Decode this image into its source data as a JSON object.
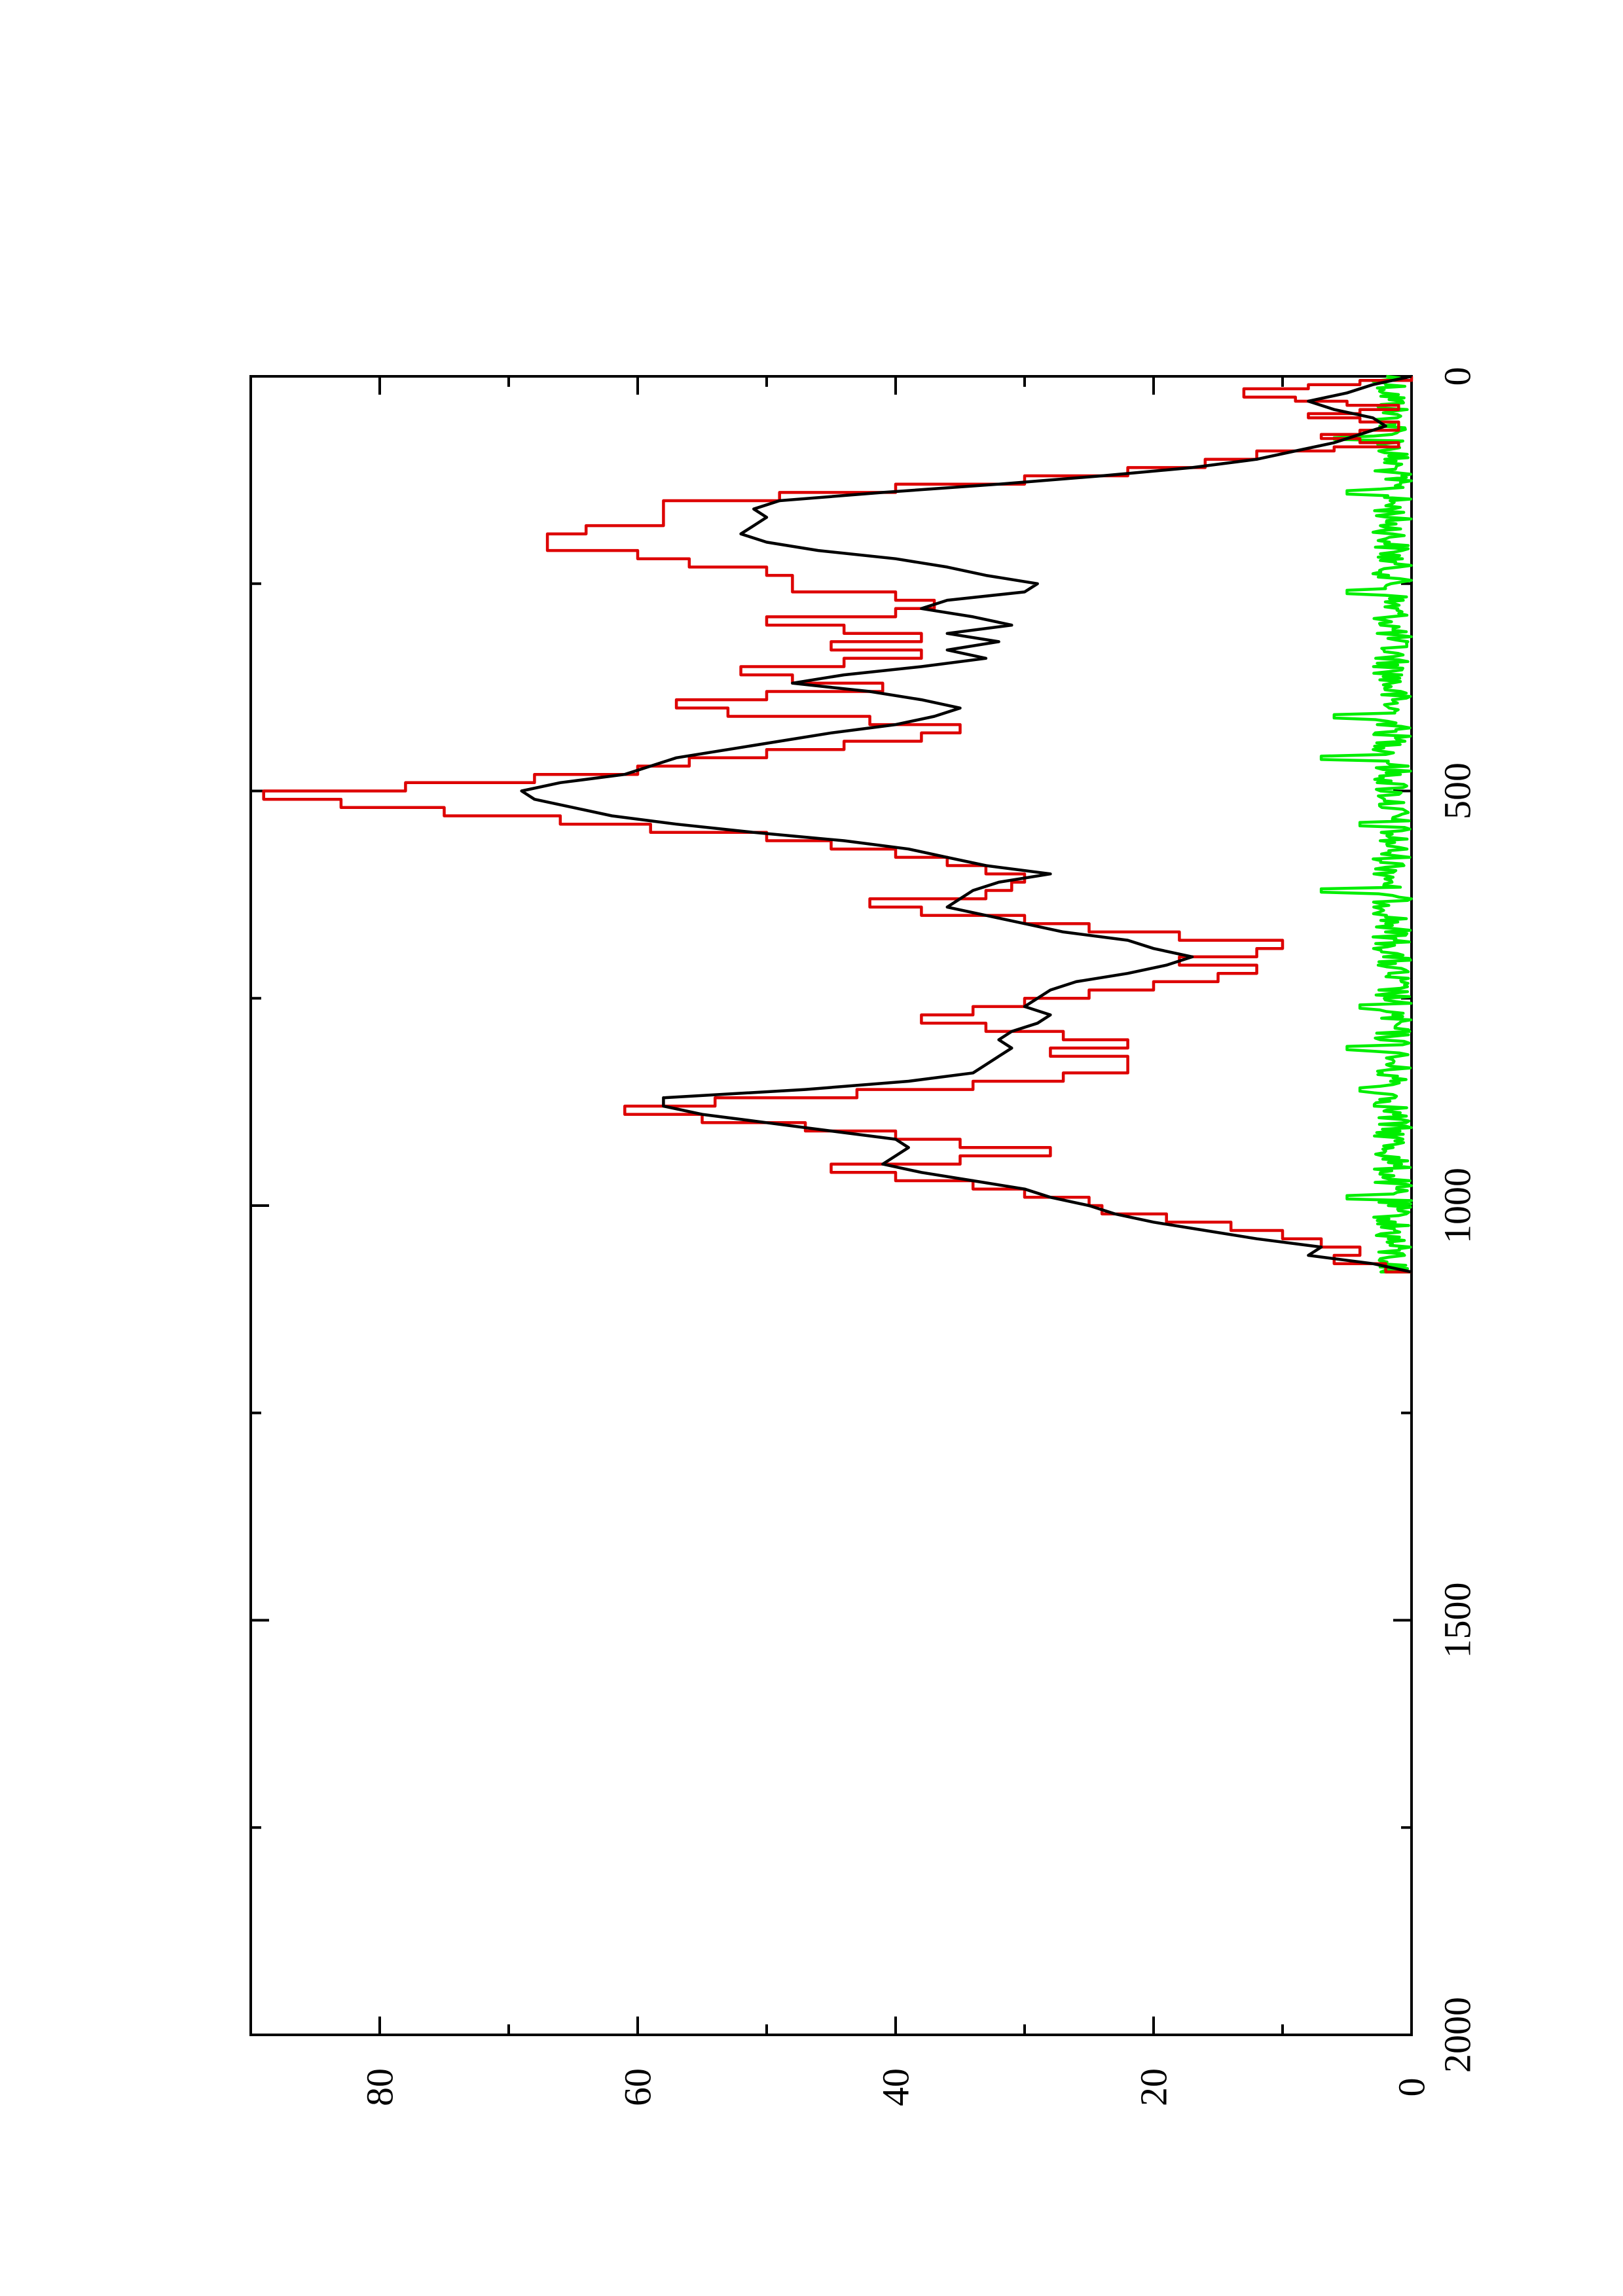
{
  "chart_data": {
    "type": "line",
    "orientation": "rotated-90-clockwise",
    "title": "",
    "xlabel": "",
    "ylabel": "",
    "xlim": [
      0,
      2000
    ],
    "ylim": [
      0,
      90
    ],
    "x_ticks": [
      0,
      500,
      1000,
      1500,
      2000
    ],
    "x_minor_ticks": [
      250,
      750,
      1250,
      1750
    ],
    "y_ticks": [
      0,
      20,
      40,
      60,
      80
    ],
    "y_minor_ticks": [
      10,
      30,
      50,
      70
    ],
    "grid": false,
    "legend": "none",
    "series": [
      {
        "color": "#dd0000",
        "step": true,
        "x": [
          0,
          5,
          10,
          15,
          20,
          25,
          30,
          35,
          40,
          45,
          50,
          55,
          60,
          65,
          70,
          75,
          80,
          85,
          90,
          100,
          110,
          120,
          130,
          140,
          150,
          160,
          170,
          180,
          190,
          200,
          210,
          220,
          230,
          240,
          250,
          260,
          270,
          280,
          290,
          300,
          310,
          320,
          330,
          340,
          350,
          360,
          370,
          380,
          390,
          400,
          410,
          420,
          430,
          440,
          450,
          460,
          470,
          480,
          490,
          500,
          510,
          520,
          530,
          540,
          550,
          560,
          570,
          580,
          590,
          600,
          610,
          620,
          630,
          640,
          650,
          660,
          670,
          680,
          690,
          700,
          710,
          720,
          730,
          740,
          750,
          760,
          770,
          780,
          790,
          800,
          810,
          820,
          830,
          840,
          850,
          860,
          870,
          880,
          890,
          900,
          910,
          920,
          930,
          940,
          950,
          960,
          970,
          980,
          990,
          1000,
          1010,
          1020,
          1030,
          1040,
          1050,
          1060,
          1070,
          1080
        ],
        "y": [
          0,
          4,
          8,
          13,
          13,
          9,
          5,
          1,
          4,
          8,
          4,
          1,
          1,
          4,
          7,
          4,
          1,
          6,
          12,
          16,
          22,
          30,
          40,
          49,
          58,
          58,
          58,
          64,
          67,
          67,
          60,
          56,
          50,
          48,
          48,
          40,
          37,
          40,
          50,
          44,
          38,
          45,
          38,
          44,
          52,
          48,
          41,
          50,
          57,
          53,
          42,
          35,
          38,
          44,
          50,
          56,
          60,
          68,
          78,
          89,
          83,
          75,
          66,
          59,
          50,
          45,
          40,
          36,
          33,
          30,
          31,
          33,
          42,
          38,
          30,
          25,
          18,
          10,
          12,
          18,
          12,
          15,
          20,
          25,
          30,
          34,
          38,
          33,
          27,
          22,
          28,
          22,
          22,
          27,
          34,
          43,
          54,
          61,
          55,
          47,
          40,
          35,
          28,
          35,
          45,
          40,
          34,
          30,
          25,
          24,
          19,
          14,
          10,
          7,
          4,
          6,
          2,
          0
        ]
      },
      {
        "color": "#000000",
        "step": false,
        "x": [
          0,
          10,
          20,
          30,
          40,
          50,
          60,
          70,
          80,
          90,
          100,
          110,
          120,
          130,
          140,
          150,
          160,
          170,
          180,
          190,
          200,
          210,
          220,
          230,
          240,
          250,
          260,
          270,
          280,
          290,
          300,
          310,
          320,
          330,
          340,
          350,
          360,
          370,
          380,
          390,
          400,
          410,
          420,
          430,
          440,
          450,
          460,
          470,
          480,
          490,
          500,
          510,
          520,
          530,
          540,
          550,
          560,
          570,
          580,
          590,
          600,
          610,
          620,
          630,
          640,
          650,
          660,
          670,
          680,
          690,
          700,
          710,
          720,
          730,
          740,
          750,
          760,
          770,
          780,
          790,
          800,
          810,
          820,
          830,
          840,
          850,
          860,
          870,
          880,
          890,
          900,
          910,
          920,
          930,
          940,
          950,
          960,
          970,
          980,
          990,
          1000,
          1010,
          1020,
          1030,
          1040,
          1050,
          1060,
          1070,
          1080
        ],
        "y": [
          0,
          3,
          5,
          8,
          6,
          3,
          2,
          4,
          6,
          9,
          12,
          17,
          24,
          32,
          41,
          49,
          51,
          50,
          51,
          52,
          50,
          46,
          40,
          36,
          33,
          29,
          30,
          36,
          38,
          34,
          31,
          36,
          32,
          36,
          33,
          38,
          44,
          48,
          42,
          38,
          35,
          37,
          40,
          45,
          49,
          53,
          57,
          59,
          61,
          66,
          69,
          68,
          65,
          62,
          57,
          51,
          44,
          39,
          36,
          33,
          28,
          32,
          34,
          35,
          36,
          33,
          30,
          27,
          22,
          20,
          17,
          19,
          22,
          26,
          28,
          29,
          30,
          28,
          29,
          31,
          32,
          31,
          32,
          33,
          34,
          39,
          47,
          58,
          58,
          55,
          50,
          45,
          40,
          39,
          40,
          41,
          38,
          34,
          30,
          28,
          25,
          23,
          20,
          16,
          12,
          7,
          8,
          3,
          0
        ]
      },
      {
        "color": "#00ee00",
        "step": false,
        "noise": true,
        "x_range": [
          0,
          1080
        ],
        "typical_max": 3,
        "peaks": [
          [
            75,
            6
          ],
          [
            140,
            5
          ],
          [
            260,
            5
          ],
          [
            410,
            6
          ],
          [
            460,
            7
          ],
          [
            540,
            4
          ],
          [
            620,
            7
          ],
          [
            760,
            4
          ],
          [
            810,
            5
          ],
          [
            860,
            4
          ],
          [
            990,
            5
          ]
        ]
      }
    ]
  }
}
